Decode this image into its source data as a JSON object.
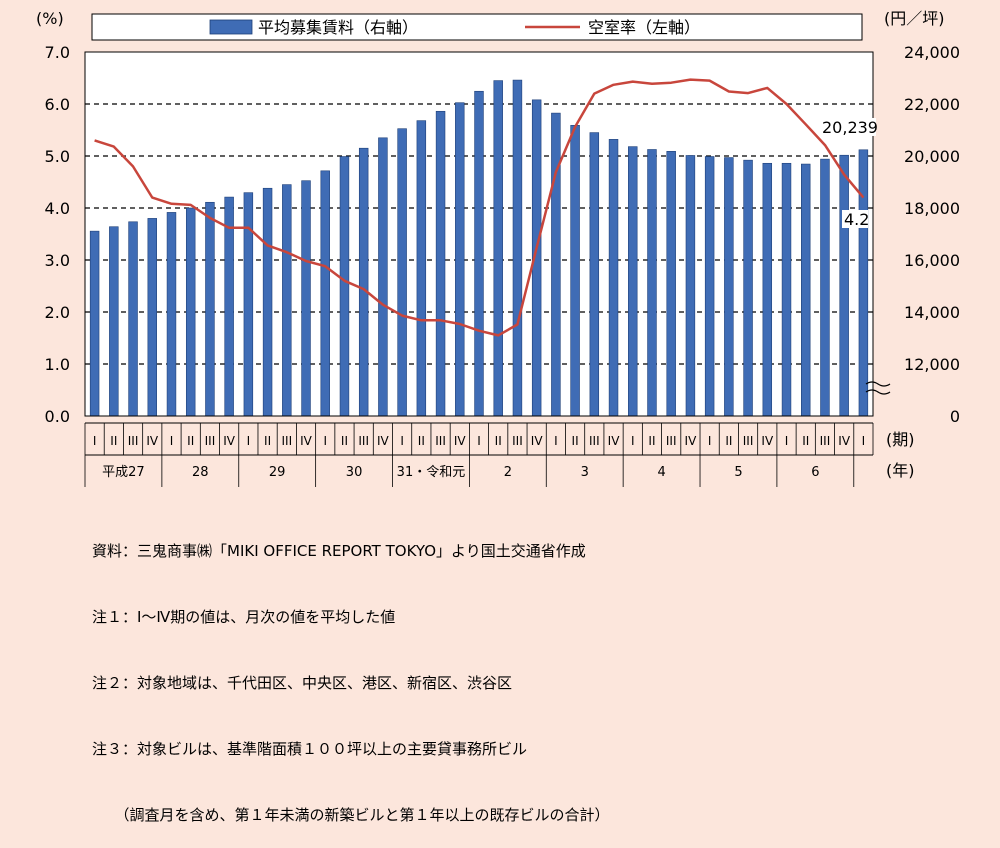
{
  "chart_data": {
    "type": "bar+line",
    "legend": {
      "bar_label": "平均募集賃料（右軸）",
      "line_label": "空室率（左軸）",
      "placement": "top"
    },
    "left_axis": {
      "unit": "(%)",
      "range": [
        0,
        7
      ],
      "ticks": [
        "0.0",
        "1.0",
        "2.0",
        "3.0",
        "4.0",
        "5.0",
        "6.0",
        "7.0"
      ]
    },
    "right_axis": {
      "unit": "(円／坪)",
      "range_top": 24000,
      "broken_below": 10000,
      "ticks": [
        "0",
        "12,000",
        "14,000",
        "16,000",
        "18,000",
        "20,000",
        "22,000",
        "24,000"
      ]
    },
    "quarter_axis": {
      "unit": "(期)",
      "labels": [
        "I",
        "II",
        "III",
        "IV"
      ]
    },
    "year_axis": {
      "unit": "(年)",
      "years": [
        "平成27",
        "28",
        "29",
        "30",
        "31・令和元",
        "2",
        "3",
        "4",
        "5",
        "6"
      ]
    },
    "series": [
      {
        "name": "平均募集賃料（右軸）",
        "kind": "bar",
        "color": "#3f6cb5",
        "values": [
          17110,
          17280,
          17470,
          17600,
          17830,
          18000,
          18220,
          18420,
          18590,
          18760,
          18900,
          19050,
          19430,
          19980,
          20300,
          20700,
          21050,
          21360,
          21720,
          22050,
          22490,
          22900,
          22920,
          22160,
          21650,
          21180,
          20900,
          20640,
          20360,
          20250,
          20180,
          20020,
          19980,
          19940,
          19840,
          19720,
          19720,
          19690,
          19880,
          20030,
          20239
        ]
      },
      {
        "name": "空室率（左軸）",
        "kind": "line",
        "color": "#c8463c",
        "values": [
          5.3,
          5.18,
          4.8,
          4.2,
          4.08,
          4.06,
          3.81,
          3.62,
          3.62,
          3.28,
          3.15,
          2.98,
          2.88,
          2.6,
          2.44,
          2.14,
          1.93,
          1.84,
          1.84,
          1.77,
          1.64,
          1.55,
          1.76,
          3.24,
          4.69,
          5.56,
          6.2,
          6.37,
          6.43,
          6.39,
          6.41,
          6.47,
          6.45,
          6.24,
          6.21,
          6.31,
          6.0,
          5.61,
          5.21,
          4.64,
          4.2
        ]
      }
    ],
    "annotations": {
      "last_rent": "20,239",
      "last_vacancy": "4.2"
    }
  },
  "notes": [
    "資料：三鬼商事㈱「MIKI OFFICE REPORT TOKYO」より国土交通省作成",
    "注１：Ⅰ～Ⅳ期の値は、月次の値を平均した値",
    "注２：対象地域は、千代田区、中央区、港区、新宿区、渋谷区",
    "注３：対象ビルは、基準階面積１００坪以上の主要貸事務所ビル",
    "　　（調査月を含め、第１年未満の新築ビルと第１年以上の既存ビルの合計）"
  ]
}
